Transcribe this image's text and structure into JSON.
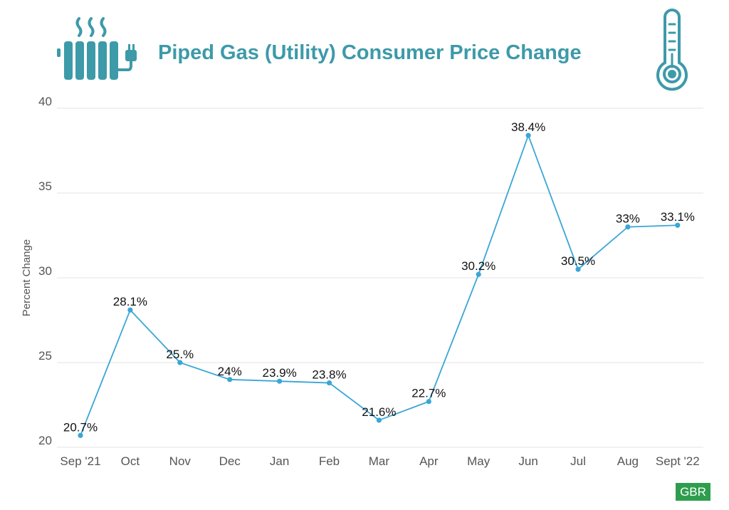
{
  "header": {
    "title": "Piped Gas (Utility) Consumer Price Change",
    "left_icon": "radiator-plug-icon",
    "right_icon": "thermometer-icon"
  },
  "badge": {
    "label": "GBR",
    "color": "#2e9e4e"
  },
  "colors": {
    "accent": "#3d9aa9",
    "line": "#3aa6d6",
    "grid": "#e3e3e3"
  },
  "chart_data": {
    "type": "line",
    "title": "Piped Gas (Utility) Consumer Price Change",
    "xlabel": "",
    "ylabel": "Percent Change",
    "ylim": [
      20,
      40
    ],
    "yticks": [
      20,
      25,
      30,
      35,
      40
    ],
    "grid": true,
    "categories": [
      "Sep '21",
      "Oct",
      "Nov",
      "Dec",
      "Jan",
      "Feb",
      "Mar",
      "Apr",
      "May",
      "Jun",
      "Jul",
      "Aug",
      "Sept '22"
    ],
    "values": [
      20.7,
      28.1,
      25.0,
      24.0,
      23.9,
      23.8,
      21.6,
      22.7,
      30.2,
      38.4,
      30.5,
      33.0,
      33.1
    ],
    "data_labels": [
      "20.7%",
      "28.1%",
      "25.%",
      "24%",
      "23.9%",
      "23.8%",
      "21.6%",
      "22.7%",
      "30.2%",
      "38.4%",
      "30.5%",
      "33%",
      "33.1%"
    ]
  }
}
